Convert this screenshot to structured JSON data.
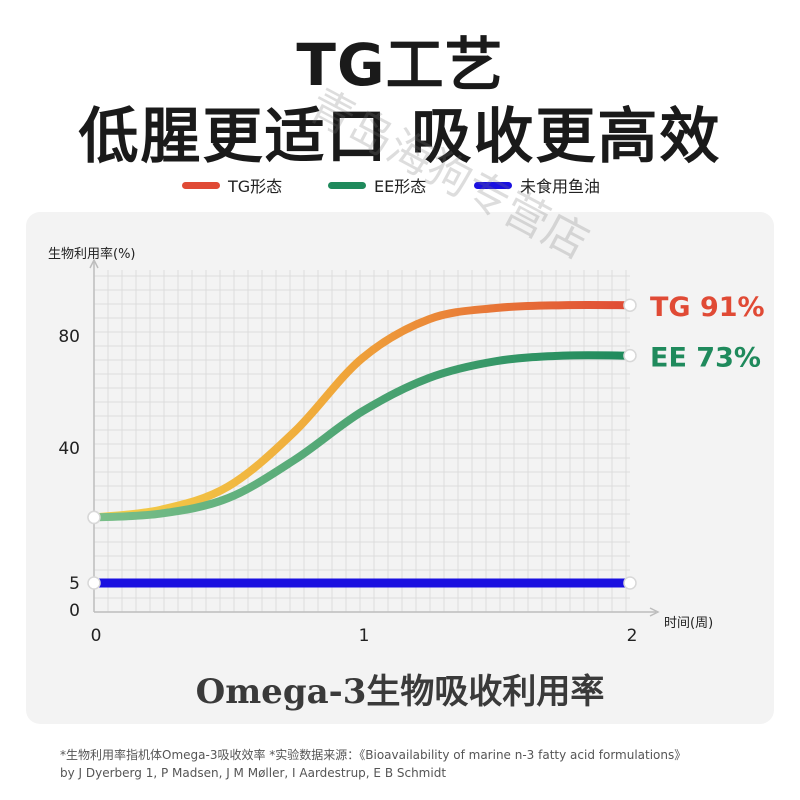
{
  "header": {
    "title_line1": "TG工艺",
    "title_line2": "低腥更适口 吸收更高效"
  },
  "legend": [
    {
      "label": "TG形态",
      "color": "#e04a35"
    },
    {
      "label": "EE形态",
      "color": "#1f8a5c"
    },
    {
      "label": "未食用鱼油",
      "color": "#1a10e0"
    }
  ],
  "watermark": "青岛海狗专营店",
  "chart_data": {
    "type": "line",
    "ylabel": "生物利用率(%)",
    "xlabel": "时间(周)",
    "x_ticks": [
      "0",
      "1",
      "2"
    ],
    "y_ticks": [
      "0",
      "5",
      "40",
      "80"
    ],
    "xlim": [
      0,
      2
    ],
    "grid": true,
    "series": [
      {
        "name": "TG形态",
        "end_label": "TG 91%",
        "color_start": "#f2d14a",
        "color_end": "#e04a35",
        "x": [
          0,
          0.25,
          0.5,
          0.75,
          1.0,
          1.25,
          1.5,
          1.75,
          2.0
        ],
        "y": [
          22,
          24,
          30,
          46,
          72,
          86,
          90,
          91,
          91
        ]
      },
      {
        "name": "EE形态",
        "end_label": "EE 73%",
        "color_start": "#7bbf8a",
        "color_end": "#1f8a5c",
        "x": [
          0,
          0.25,
          0.5,
          0.75,
          1.0,
          1.25,
          1.5,
          1.75,
          2.0
        ],
        "y": [
          22,
          23,
          27,
          37,
          53,
          65,
          71,
          73,
          73
        ]
      },
      {
        "name": "未食用鱼油",
        "color_start": "#1a10e0",
        "color_end": "#1a10e0",
        "x": [
          0,
          2.0
        ],
        "y": [
          5,
          5
        ]
      }
    ]
  },
  "caption": "Omega-3生物吸收利用率",
  "footnote": {
    "line1": "*生物利用率指机体Omega-3吸收效率   *实验数据来源：《Bioavailability of marine n-3 fatty acid formulations》",
    "line2": "by J Dyerberg 1, P Madsen, J M Møller, I Aardestrup, E B Schmidt"
  }
}
